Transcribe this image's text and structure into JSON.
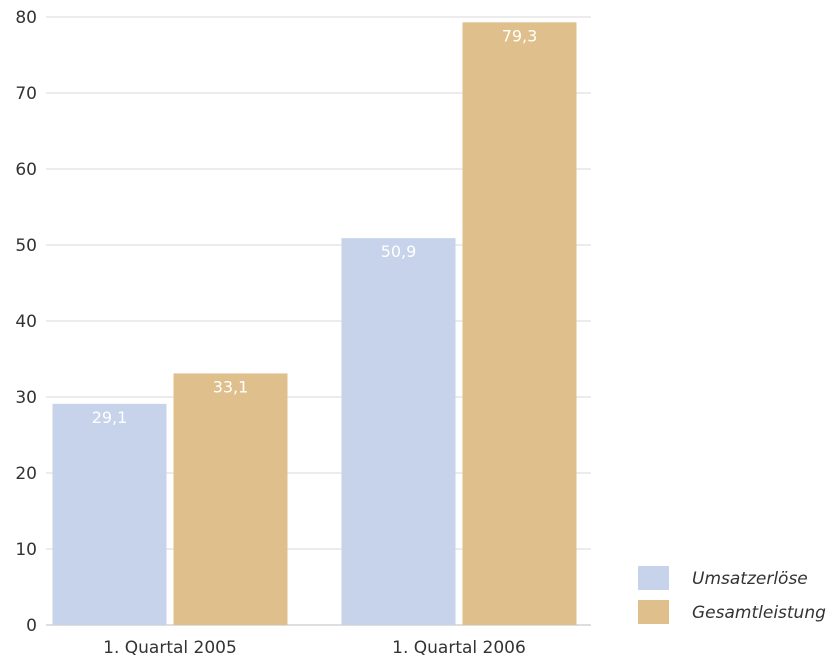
{
  "chart_data": {
    "type": "bar",
    "categories": [
      "1. Quartal 2005",
      "1. Quartal 2006"
    ],
    "series": [
      {
        "name": "Umsatzerlöse",
        "values": [
          29.1,
          50.9
        ],
        "labels": [
          "29,1",
          "50,9"
        ],
        "color": "#c7d3ea"
      },
      {
        "name": "Gesamtleistung",
        "values": [
          33.1,
          79.3
        ],
        "labels": [
          "33,1",
          "79,3"
        ],
        "color": "#dfbf8c"
      }
    ],
    "yticks": [
      "0",
      "10",
      "20",
      "30",
      "40",
      "50",
      "60",
      "70",
      "80"
    ],
    "ylim": [
      0,
      80
    ],
    "grid": true,
    "legend_position": "bottom-right",
    "title": "",
    "xlabel": "",
    "ylabel": ""
  }
}
